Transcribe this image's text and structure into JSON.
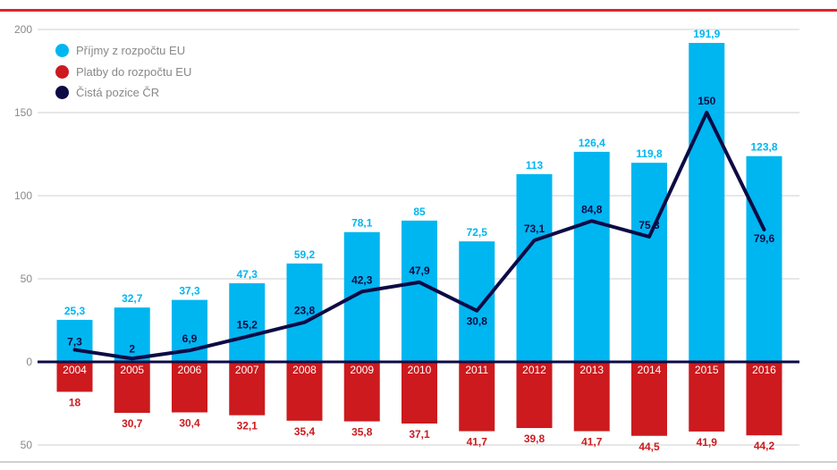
{
  "chart_data": {
    "type": "bar",
    "categories": [
      "2004",
      "2005",
      "2006",
      "2007",
      "2008",
      "2009",
      "2010",
      "2011",
      "2012",
      "2013",
      "2014",
      "2015",
      "2016"
    ],
    "series": [
      {
        "name": "Příjmy z rozpočtu EU",
        "type": "bar",
        "color": "#00b6f0",
        "values": [
          25.3,
          32.7,
          37.3,
          47.3,
          59.2,
          78.1,
          85,
          72.5,
          113,
          126.4,
          119.8,
          191.9,
          123.8
        ],
        "labels": [
          "25,3",
          "32,7",
          "37,3",
          "47,3",
          "59,2",
          "78,1",
          "85",
          "72,5",
          "113",
          "126,4",
          "119,8",
          "191,9",
          "123,8"
        ]
      },
      {
        "name": "Platby do rozpočtu EU",
        "type": "bar",
        "color": "#cc1a1e",
        "values": [
          -18,
          -30.7,
          -30.4,
          -32.1,
          -35.4,
          -35.8,
          -37.1,
          -41.7,
          -39.8,
          -41.7,
          -44.5,
          -41.9,
          -44.2
        ],
        "labels": [
          "18",
          "30,7",
          "30,4",
          "32,1",
          "35,4",
          "35,8",
          "37,1",
          "41,7",
          "39,8",
          "41,7",
          "44,5",
          "41,9",
          "44,2"
        ]
      },
      {
        "name": "Čistá pozice ČR",
        "type": "line",
        "color": "#0c0b45",
        "values": [
          7.3,
          2,
          6.9,
          15.2,
          23.8,
          42.3,
          47.9,
          30.8,
          73.1,
          84.8,
          75.3,
          150,
          79.6
        ],
        "labels": [
          "7,3",
          "2",
          "6,9",
          "15,2",
          "23,8",
          "42,3",
          "47,9",
          "30,8",
          "73,1",
          "84,8",
          "75,3",
          "150",
          "79,6"
        ]
      }
    ],
    "yticks": [
      200,
      150,
      100,
      50,
      0,
      -50
    ],
    "ytick_labels": [
      "200",
      "150",
      "100",
      "50",
      "0",
      "50"
    ],
    "ylim": [
      -55,
      200
    ],
    "grid": true,
    "legend": "top-left"
  }
}
